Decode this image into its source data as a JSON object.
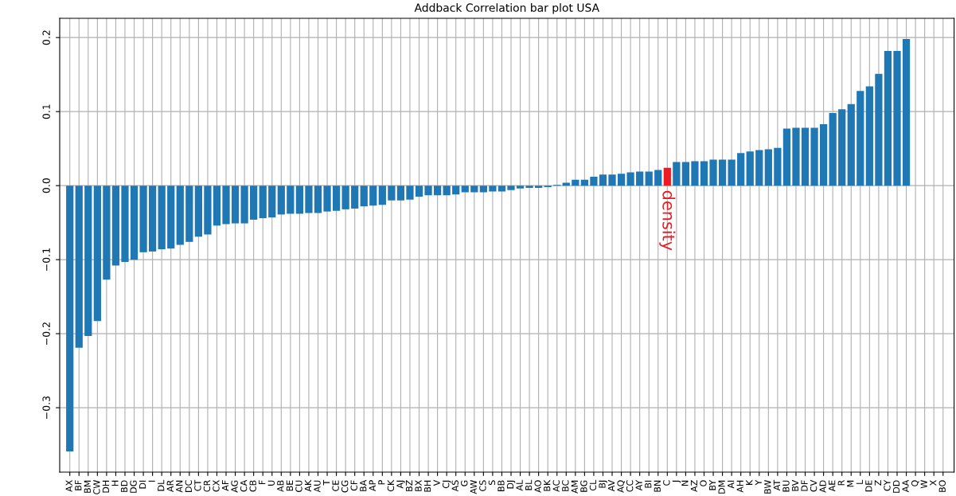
{
  "chart_data": {
    "type": "bar",
    "title": "Addback Correlation bar plot USA",
    "categories": [
      "AX",
      "BF",
      "BM",
      "CW",
      "DH",
      "H",
      "BD",
      "DG",
      "DI",
      "I",
      "DL",
      "AR",
      "AN",
      "DC",
      "CT",
      "CR",
      "CX",
      "AF",
      "AG",
      "CA",
      "CB",
      "F",
      "U",
      "AB",
      "BE",
      "CU",
      "AK",
      "AU",
      "T",
      "CE",
      "CG",
      "CF",
      "BA",
      "AP",
      "P",
      "CK",
      "AJ",
      "BZ",
      "BX",
      "BH",
      "V",
      "CJ",
      "AS",
      "G",
      "AW",
      "CS",
      "S",
      "BB",
      "DJ",
      "AL",
      "BL",
      "AO",
      "BK",
      "AC",
      "BC",
      "AM",
      "BG",
      "CL",
      "BJ",
      "AV",
      "AQ",
      "CC",
      "AY",
      "BI",
      "BN",
      "C",
      "J",
      "N",
      "AZ",
      "O",
      "BY",
      "DM",
      "AI",
      "AH",
      "K",
      "Y",
      "BW",
      "AT",
      "BU",
      "BV",
      "DF",
      "CV",
      "AD",
      "AE",
      "R",
      "M",
      "L",
      "DE",
      "Z",
      "CY",
      "DD",
      "AA",
      "Q",
      "W",
      "X",
      "BO"
    ],
    "values": [
      -0.359,
      -0.219,
      -0.203,
      -0.183,
      -0.127,
      -0.108,
      -0.103,
      -0.1,
      -0.09,
      -0.089,
      -0.086,
      -0.085,
      -0.08,
      -0.076,
      -0.069,
      -0.066,
      -0.054,
      -0.052,
      -0.051,
      -0.051,
      -0.046,
      -0.044,
      -0.043,
      -0.039,
      -0.038,
      -0.038,
      -0.037,
      -0.037,
      -0.035,
      -0.034,
      -0.032,
      -0.031,
      -0.028,
      -0.027,
      -0.026,
      -0.02,
      -0.02,
      -0.019,
      -0.015,
      -0.013,
      -0.013,
      -0.013,
      -0.012,
      -0.009,
      -0.009,
      -0.009,
      -0.008,
      -0.008,
      -0.006,
      -0.004,
      -0.003,
      -0.003,
      -0.002,
      0.001,
      0.004,
      0.008,
      0.008,
      0.012,
      0.015,
      0.015,
      0.016,
      0.018,
      0.019,
      0.019,
      0.021,
      0.024,
      0.032,
      0.032,
      0.033,
      0.033,
      0.035,
      0.035,
      0.035,
      0.044,
      0.046,
      0.048,
      0.049,
      0.051,
      0.077,
      0.078,
      0.078,
      0.078,
      0.083,
      0.098,
      0.103,
      0.11,
      0.128,
      0.134,
      0.151,
      0.182,
      0.182,
      0.198,
      0,
      0,
      0,
      0
    ],
    "colors": [
      "#1f77b4",
      "#1f77b4",
      "#1f77b4",
      "#1f77b4",
      "#1f77b4",
      "#1f77b4",
      "#1f77b4",
      "#1f77b4",
      "#1f77b4",
      "#1f77b4",
      "#1f77b4",
      "#1f77b4",
      "#1f77b4",
      "#1f77b4",
      "#1f77b4",
      "#1f77b4",
      "#1f77b4",
      "#1f77b4",
      "#1f77b4",
      "#1f77b4",
      "#1f77b4",
      "#1f77b4",
      "#1f77b4",
      "#1f77b4",
      "#1f77b4",
      "#1f77b4",
      "#1f77b4",
      "#1f77b4",
      "#1f77b4",
      "#1f77b4",
      "#1f77b4",
      "#1f77b4",
      "#1f77b4",
      "#1f77b4",
      "#1f77b4",
      "#1f77b4",
      "#1f77b4",
      "#1f77b4",
      "#1f77b4",
      "#1f77b4",
      "#1f77b4",
      "#1f77b4",
      "#1f77b4",
      "#1f77b4",
      "#1f77b4",
      "#1f77b4",
      "#1f77b4",
      "#1f77b4",
      "#1f77b4",
      "#1f77b4",
      "#1f77b4",
      "#1f77b4",
      "#1f77b4",
      "#1f77b4",
      "#1f77b4",
      "#1f77b4",
      "#1f77b4",
      "#1f77b4",
      "#1f77b4",
      "#1f77b4",
      "#1f77b4",
      "#1f77b4",
      "#1f77b4",
      "#1f77b4",
      "#1f77b4",
      "#ed1c24",
      "#1f77b4",
      "#1f77b4",
      "#1f77b4",
      "#1f77b4",
      "#1f77b4",
      "#1f77b4",
      "#1f77b4",
      "#1f77b4",
      "#1f77b4",
      "#1f77b4",
      "#1f77b4",
      "#1f77b4",
      "#1f77b4",
      "#1f77b4",
      "#1f77b4",
      "#1f77b4",
      "#1f77b4",
      "#1f77b4",
      "#1f77b4",
      "#1f77b4",
      "#1f77b4",
      "#1f77b4",
      "#1f77b4",
      "#1f77b4",
      "#1f77b4",
      "#1f77b4",
      "#1f77b4",
      "#1f77b4",
      "#1f77b4",
      "#1f77b4"
    ],
    "ylim": [
      -0.387,
      0.226
    ],
    "yticks": [
      {
        "value": -0.3,
        "label": "−0.3"
      },
      {
        "value": -0.2,
        "label": "−0.2"
      },
      {
        "value": -0.1,
        "label": "−0.1"
      },
      {
        "value": 0.0,
        "label": "0.0"
      },
      {
        "value": 0.1,
        "label": "0.1"
      },
      {
        "value": 0.2,
        "label": "0.2"
      }
    ],
    "grid": true,
    "annotations": [
      {
        "text": "density",
        "x": "C",
        "y": 0
      }
    ]
  }
}
